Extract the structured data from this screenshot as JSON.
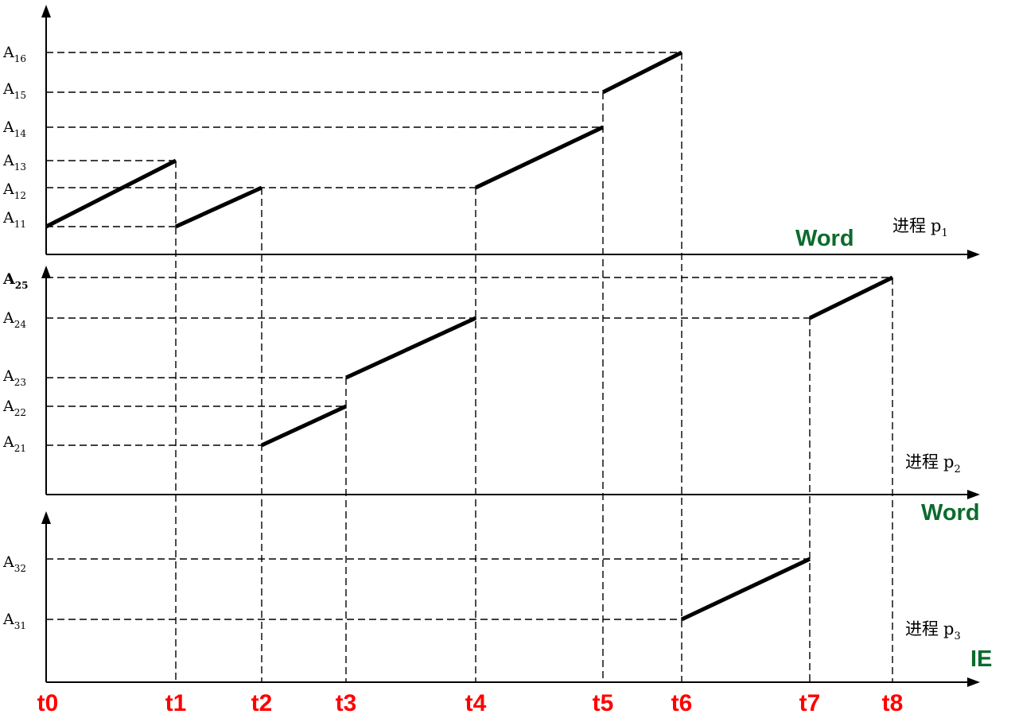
{
  "time_points": [
    "t0",
    "t1",
    "t2",
    "t3",
    "t4",
    "t5",
    "t6",
    "t7",
    "t8"
  ],
  "panels": [
    {
      "id": "p1",
      "process_label": "进程",
      "process_var": "p",
      "process_sub": "1",
      "app": "Word",
      "levels": [
        {
          "name": "A",
          "sub": "11"
        },
        {
          "name": "A",
          "sub": "12"
        },
        {
          "name": "A",
          "sub": "13"
        },
        {
          "name": "A",
          "sub": "14"
        },
        {
          "name": "A",
          "sub": "15"
        },
        {
          "name": "A",
          "sub": "16"
        }
      ],
      "segments": [
        {
          "from": {
            "t": 0,
            "level": "A11"
          },
          "to": {
            "t": 1,
            "level": "A13"
          }
        },
        {
          "from": {
            "t": 1,
            "level": "A11"
          },
          "to": {
            "t": 2,
            "level": "A12"
          }
        },
        {
          "from": {
            "t": 4,
            "level": "A12"
          },
          "to": {
            "t": 5,
            "level": "A14"
          }
        },
        {
          "from": {
            "t": 5,
            "level": "A15"
          },
          "to": {
            "t": 6,
            "level": "A16"
          }
        }
      ]
    },
    {
      "id": "p2",
      "process_label": "进程",
      "process_var": "p",
      "process_sub": "2",
      "app": "Word",
      "levels": [
        {
          "name": "A",
          "sub": "21"
        },
        {
          "name": "A",
          "sub": "22"
        },
        {
          "name": "A",
          "sub": "23"
        },
        {
          "name": "A",
          "sub": "24"
        },
        {
          "name": "A",
          "sub": "25"
        }
      ],
      "segments": [
        {
          "from": {
            "t": 2,
            "level": "A21"
          },
          "to": {
            "t": 3,
            "level": "A22"
          }
        },
        {
          "from": {
            "t": 3,
            "level": "A23"
          },
          "to": {
            "t": 4,
            "level": "A24"
          }
        },
        {
          "from": {
            "t": 7,
            "level": "A24"
          },
          "to": {
            "t": 8,
            "level": "A25"
          }
        }
      ]
    },
    {
      "id": "p3",
      "process_label": "进程",
      "process_var": "p",
      "process_sub": "3",
      "app": "IE",
      "levels": [
        {
          "name": "A",
          "sub": "31"
        },
        {
          "name": "A",
          "sub": "32"
        }
      ],
      "segments": [
        {
          "from": {
            "t": 6,
            "level": "A31"
          },
          "to": {
            "t": 7,
            "level": "A32"
          }
        }
      ]
    }
  ]
}
